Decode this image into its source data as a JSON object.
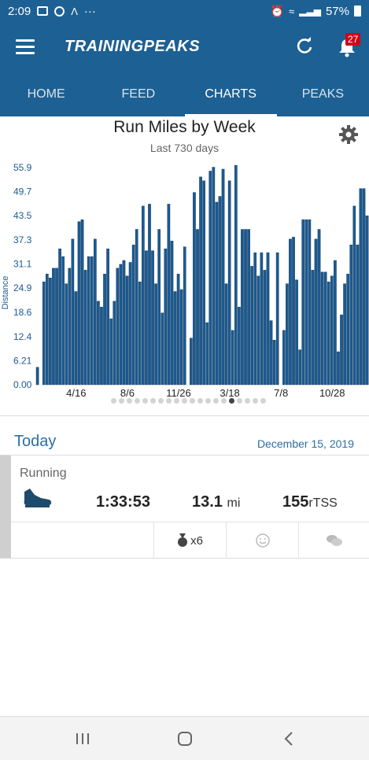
{
  "status_bar": {
    "time": "2:09",
    "dots": "···",
    "battery": "57%"
  },
  "app_bar": {
    "logo": "TRAININGPEAKS",
    "notification_count": "27"
  },
  "tabs": [
    {
      "label": "HOME",
      "active": false
    },
    {
      "label": "FEED",
      "active": false
    },
    {
      "label": "CHARTS",
      "active": true
    },
    {
      "label": "PEAKS",
      "active": false
    }
  ],
  "chart": {
    "title": "Run Miles by Week",
    "subtitle": "Last 730 days"
  },
  "chart_data": {
    "type": "bar",
    "title": "Run Miles by Week",
    "subtitle": "Last 730 days",
    "ylabel": "Distance",
    "ylim": [
      0,
      55.9
    ],
    "yticks": [
      "0.00",
      "6.21",
      "12.4",
      "18.6",
      "24.9",
      "31.1",
      "37.3",
      "43.5",
      "49.7",
      "55.9"
    ],
    "xticks": [
      {
        "label": "4/16",
        "index": 12
      },
      {
        "label": "8/6",
        "index": 28
      },
      {
        "label": "11/26",
        "index": 44
      },
      {
        "label": "3/18",
        "index": 60
      },
      {
        "label": "7/8",
        "index": 76
      },
      {
        "label": "10/28",
        "index": 92
      }
    ],
    "bar_color": "#1c5a91",
    "values": [
      4.5,
      0,
      26.5,
      28.5,
      27.5,
      30,
      30,
      35,
      33,
      26,
      30,
      37.5,
      24,
      42,
      42.5,
      29.5,
      33,
      33,
      37.5,
      21.5,
      20,
      28.5,
      35,
      17,
      21.5,
      30,
      31,
      32,
      28,
      31.5,
      36,
      40,
      26.5,
      46,
      34.5,
      46.5,
      34.5,
      26,
      40,
      18.5,
      35,
      46.5,
      37,
      24,
      28.5,
      24.5,
      35.5,
      0,
      12,
      49.5,
      40,
      53.5,
      52.5,
      16,
      55,
      56,
      47,
      48.5,
      55.5,
      26,
      52.5,
      14,
      56.5,
      20,
      40,
      40,
      40,
      30.5,
      34,
      28,
      34,
      29.5,
      34,
      16.5,
      11.5,
      34,
      0,
      14,
      26,
      37.5,
      38,
      27,
      9,
      42.5,
      42.5,
      42.5,
      29.5,
      37.5,
      40,
      29,
      29,
      26.5,
      28,
      32,
      8.5,
      18,
      26,
      28.5,
      36,
      46,
      36,
      50.5,
      50.5,
      43.5
    ],
    "grid": false,
    "legend": "none"
  },
  "pagination": {
    "count": 20,
    "active_index": 15
  },
  "today": {
    "label": "Today",
    "date": "December 15, 2019",
    "workout": {
      "type": "Running",
      "duration": "1:33:53",
      "distance": "13.1",
      "distance_unit": "mi",
      "tss": "155",
      "tss_unit": "rTSS",
      "medals": "x6"
    }
  }
}
